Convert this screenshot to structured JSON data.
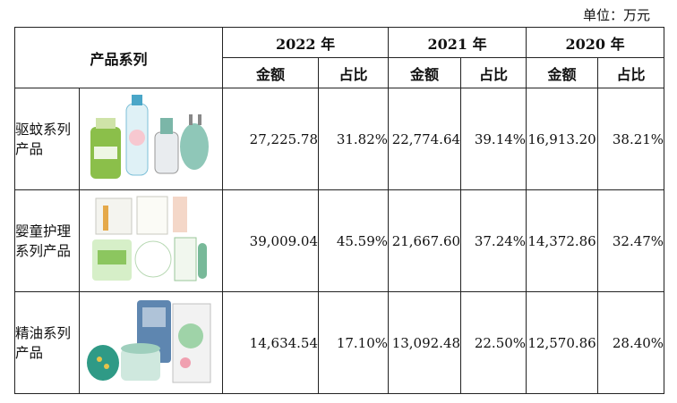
{
  "unit_label": "单位：万元",
  "header": {
    "product_series": "产品系列",
    "years": [
      "2022 年",
      "2021 年",
      "2020 年"
    ],
    "amount": "金额",
    "share": "占比"
  },
  "rows": [
    {
      "name": "驱蚊系列产品",
      "image": "mosquito-repellent-products",
      "y2022_amount": "27,225.78",
      "y2022_share": "31.82%",
      "y2021_amount": "22,774.64",
      "y2021_share": "39.14%",
      "y2020_amount": "16,913.20",
      "y2020_share": "38.21%"
    },
    {
      "name": "婴童护理系列产品",
      "image": "baby-care-products",
      "y2022_amount": "39,009.04",
      "y2022_share": "45.59%",
      "y2021_amount": "21,667.60",
      "y2021_share": "37.24%",
      "y2020_amount": "14,372.86",
      "y2020_share": "32.47%"
    },
    {
      "name": "精油系列产品",
      "image": "essential-oil-products",
      "y2022_amount": "14,634.54",
      "y2022_share": "17.10%",
      "y2021_amount": "13,092.48",
      "y2021_share": "22.50%",
      "y2020_amount": "12,570.86",
      "y2020_share": "28.40%"
    }
  ]
}
